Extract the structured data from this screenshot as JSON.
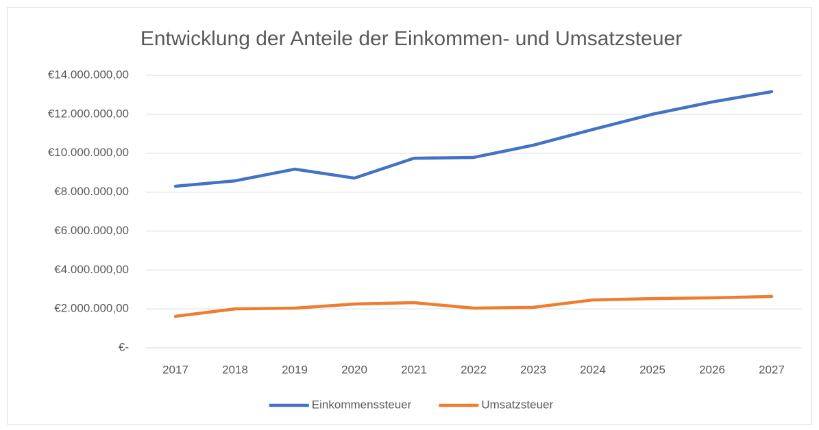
{
  "chart_data": {
    "type": "line",
    "title": "Entwicklung der Anteile der Einkommen- und Umsatzsteuer",
    "categories": [
      "2017",
      "2018",
      "2019",
      "2020",
      "2021",
      "2022",
      "2023",
      "2024",
      "2025",
      "2026",
      "2027"
    ],
    "series": [
      {
        "name": "Einkommenssteuer",
        "color": "#4472c4",
        "values": [
          8300000,
          8580000,
          9180000,
          8720000,
          9740000,
          9780000,
          10410000,
          11220000,
          12000000,
          12630000,
          13160000
        ]
      },
      {
        "name": "Umsatzsteuer",
        "color": "#ed7d31",
        "values": [
          1620000,
          2000000,
          2040000,
          2250000,
          2320000,
          2040000,
          2080000,
          2460000,
          2530000,
          2570000,
          2640000
        ]
      }
    ],
    "ylim": [
      0,
      14000000
    ],
    "yticks": [
      {
        "value": 0,
        "label": "€-"
      },
      {
        "value": 2000000,
        "label": "€2.000.000,00"
      },
      {
        "value": 4000000,
        "label": "€4.000.000,00"
      },
      {
        "value": 6000000,
        "label": "€6.000.000,00"
      },
      {
        "value": 8000000,
        "label": "€8.000.000,00"
      },
      {
        "value": 10000000,
        "label": "€10.000.000,00"
      },
      {
        "value": 12000000,
        "label": "€12.000.000,00"
      },
      {
        "value": 14000000,
        "label": "€14.000.000,00"
      }
    ],
    "grid": true,
    "legend": "bottom"
  }
}
